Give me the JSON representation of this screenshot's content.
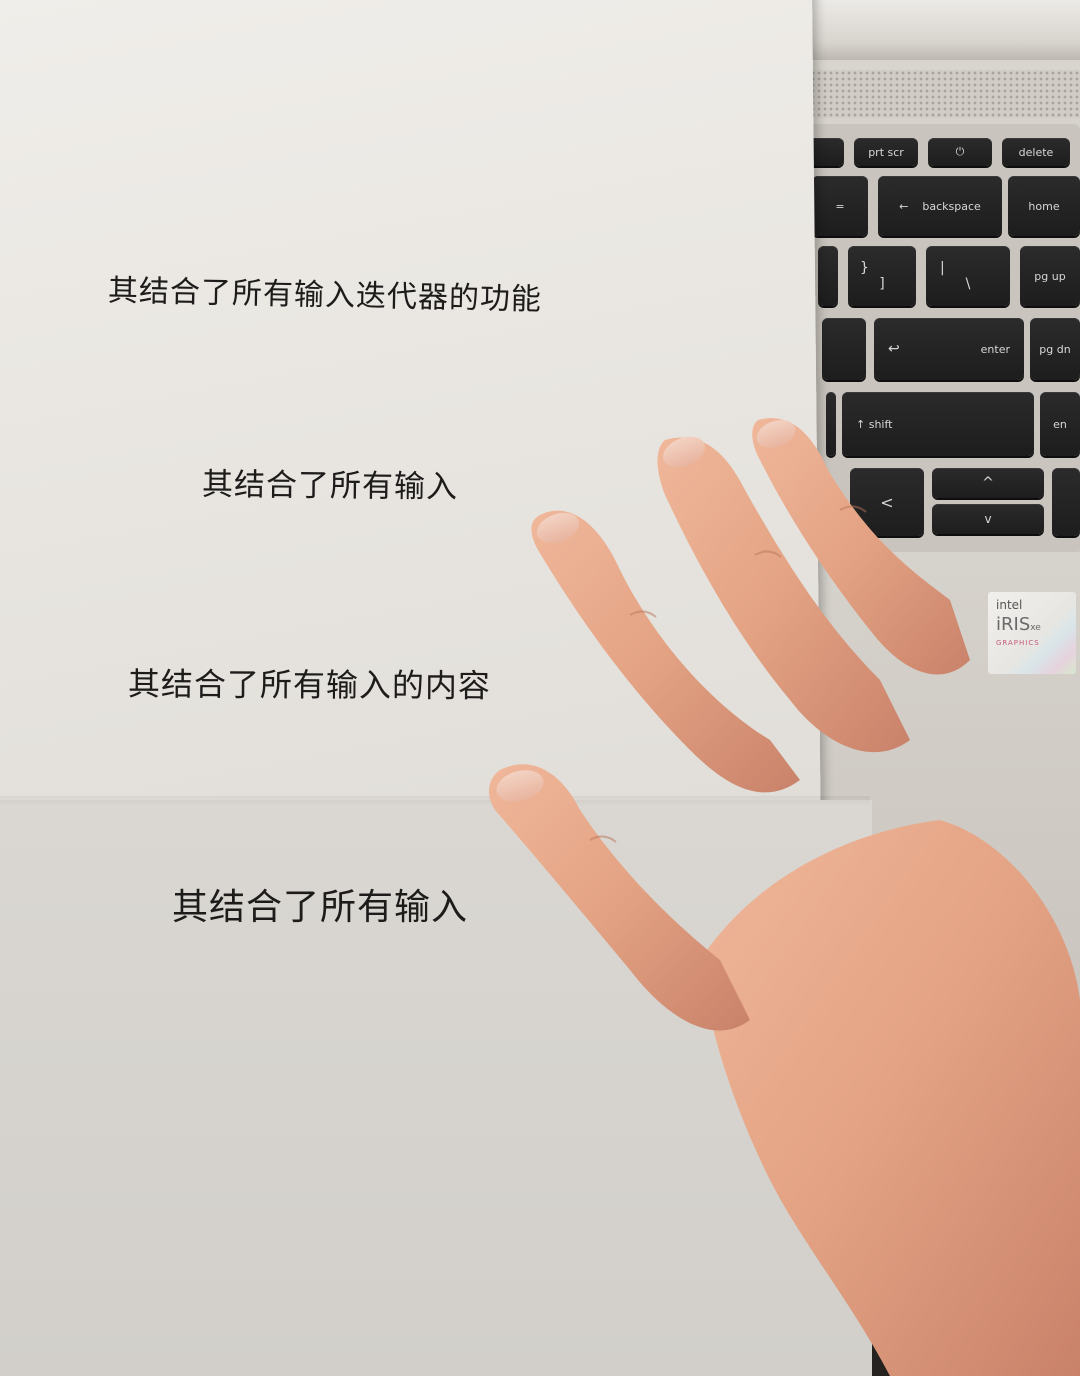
{
  "paper": {
    "lines": [
      "其结合了所有输入迭代器的功能",
      "其结合了所有输入",
      "其结合了所有输入的内容",
      "其结合了所有输入"
    ]
  },
  "keyboard": {
    "keys": {
      "prt_scr": "prt scr",
      "power": "⏻",
      "delete": "delete",
      "equals": "=",
      "backspace": "backspace",
      "backspace_arrow": "←",
      "home": "home",
      "brace_top": "}",
      "brace_bottom": "]",
      "pipe_top": "|",
      "pipe_bottom": "\\",
      "pg_up": "pg up",
      "enter": "enter",
      "enter_arrow": "↩",
      "pg_dn": "pg dn",
      "shift": "↑ shift",
      "end": "en",
      "left_arrow": "<",
      "up_arrow": "^",
      "down_arrow": "v"
    }
  },
  "sticker": {
    "brand": "intel",
    "product": "iRIS",
    "product_suffix": "xe",
    "sub": "GRAPHICS"
  },
  "colors": {
    "paper": "#e6e3de",
    "ink": "#1d1c1b",
    "key": "#242424",
    "skin": "#e3a283"
  }
}
